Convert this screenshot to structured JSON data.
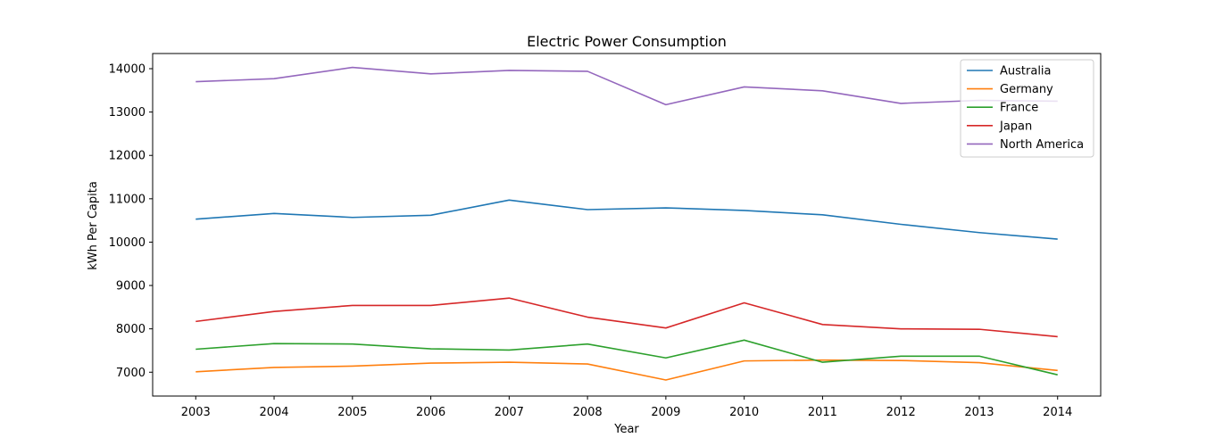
{
  "chart_data": {
    "type": "line",
    "title": "Electric Power Consumption",
    "xlabel": "Year",
    "ylabel": "kWh Per Capita",
    "x": [
      2003,
      2004,
      2005,
      2006,
      2007,
      2008,
      2009,
      2010,
      2011,
      2012,
      2013,
      2014
    ],
    "ylim": [
      6450,
      14350
    ],
    "yticks": [
      7000,
      8000,
      9000,
      10000,
      11000,
      12000,
      13000,
      14000
    ],
    "grid": false,
    "legend_position": "top-right",
    "series": [
      {
        "name": "Australia",
        "color": "#1f77b4",
        "values": [
          10530,
          10660,
          10570,
          10620,
          10970,
          10750,
          10790,
          10730,
          10630,
          10410,
          10220,
          10070
        ]
      },
      {
        "name": "Germany",
        "color": "#ff7f0e",
        "values": [
          7010,
          7110,
          7140,
          7210,
          7230,
          7190,
          6820,
          7260,
          7280,
          7270,
          7220,
          7040
        ]
      },
      {
        "name": "France",
        "color": "#2ca02c",
        "values": [
          7530,
          7660,
          7650,
          7540,
          7510,
          7650,
          7330,
          7740,
          7230,
          7370,
          7370,
          6940
        ]
      },
      {
        "name": "Japan",
        "color": "#d62728",
        "values": [
          8170,
          8400,
          8540,
          8540,
          8710,
          8270,
          8020,
          8600,
          8100,
          8000,
          7990,
          7820
        ]
      },
      {
        "name": "North America",
        "color": "#9467bd",
        "values": [
          13700,
          13770,
          14030,
          13880,
          13960,
          13940,
          13170,
          13580,
          13490,
          13200,
          13270,
          13250
        ]
      }
    ]
  }
}
